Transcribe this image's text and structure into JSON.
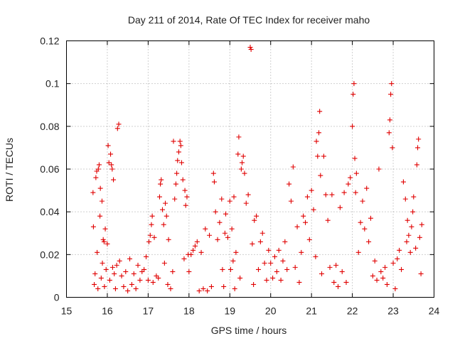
{
  "chart_data": {
    "type": "scatter",
    "title": "Day 211 of 2014, Rate Of TEC Index for receiver maho",
    "xlabel": "GPS time / hours",
    "ylabel": "ROTI / TECUs",
    "xlim": [
      15,
      24
    ],
    "ylim": [
      0,
      0.12
    ],
    "xticks": [
      "15",
      "16",
      "17",
      "18",
      "19",
      "20",
      "21",
      "22",
      "23",
      "24"
    ],
    "yticks": [
      "0",
      "0.02",
      "0.04",
      "0.06",
      "0.08",
      "0.1",
      "0.12"
    ],
    "grid": true,
    "marker": "plus",
    "color": "#e00000",
    "note": "approximate trace: representative points estimated from a ~2000-point noisy scatter",
    "series": [
      {
        "name": "ROTI",
        "points": [
          [
            15.65,
            0.049
          ],
          [
            15.66,
            0.033
          ],
          [
            15.68,
            0.006
          ],
          [
            15.7,
            0.011
          ],
          [
            15.72,
            0.056
          ],
          [
            15.74,
            0.059
          ],
          [
            15.75,
            0.021
          ],
          [
            15.77,
            0.004
          ],
          [
            15.78,
            0.06
          ],
          [
            15.8,
            0.062
          ],
          [
            15.82,
            0.038
          ],
          [
            15.83,
            0.051
          ],
          [
            15.85,
            0.009
          ],
          [
            15.87,
            0.045
          ],
          [
            15.88,
            0.016
          ],
          [
            15.9,
            0.027
          ],
          [
            15.92,
            0.026
          ],
          [
            15.93,
            0.005
          ],
          [
            15.95,
            0.032
          ],
          [
            15.97,
            0.013
          ],
          [
            16.0,
            0.025
          ],
          [
            16.02,
            0.071
          ],
          [
            16.04,
            0.063
          ],
          [
            16.06,
            0.008
          ],
          [
            16.08,
            0.067
          ],
          [
            16.1,
            0.062
          ],
          [
            16.12,
            0.06
          ],
          [
            16.13,
            0.014
          ],
          [
            16.15,
            0.055
          ],
          [
            16.17,
            0.011
          ],
          [
            16.2,
            0.004
          ],
          [
            16.23,
            0.015
          ],
          [
            16.25,
            0.079
          ],
          [
            16.28,
            0.081
          ],
          [
            16.3,
            0.017
          ],
          [
            16.35,
            0.01
          ],
          [
            16.4,
            0.005
          ],
          [
            16.45,
            0.012
          ],
          [
            16.5,
            0.003
          ],
          [
            16.55,
            0.018
          ],
          [
            16.6,
            0.006
          ],
          [
            16.65,
            0.011
          ],
          [
            16.7,
            0.004
          ],
          [
            16.75,
            0.015
          ],
          [
            16.8,
            0.008
          ],
          [
            16.85,
            0.012
          ],
          [
            16.9,
            0.013
          ],
          [
            16.95,
            0.019
          ],
          [
            17.0,
            0.008
          ],
          [
            17.02,
            0.026
          ],
          [
            17.05,
            0.029
          ],
          [
            17.08,
            0.034
          ],
          [
            17.1,
            0.038
          ],
          [
            17.12,
            0.007
          ],
          [
            17.15,
            0.028
          ],
          [
            17.2,
            0.01
          ],
          [
            17.25,
            0.009
          ],
          [
            17.28,
            0.047
          ],
          [
            17.3,
            0.053
          ],
          [
            17.32,
            0.055
          ],
          [
            17.35,
            0.041
          ],
          [
            17.38,
            0.034
          ],
          [
            17.4,
            0.016
          ],
          [
            17.42,
            0.044
          ],
          [
            17.45,
            0.038
          ],
          [
            17.48,
            0.006
          ],
          [
            17.5,
            0.027
          ],
          [
            17.55,
            0.004
          ],
          [
            17.6,
            0.012
          ],
          [
            17.62,
            0.073
          ],
          [
            17.65,
            0.046
          ],
          [
            17.68,
            0.053
          ],
          [
            17.7,
            0.058
          ],
          [
            17.72,
            0.064
          ],
          [
            17.75,
            0.068
          ],
          [
            17.78,
            0.073
          ],
          [
            17.8,
            0.071
          ],
          [
            17.82,
            0.063
          ],
          [
            17.85,
            0.055
          ],
          [
            17.88,
            0.018
          ],
          [
            17.9,
            0.05
          ],
          [
            17.92,
            0.043
          ],
          [
            17.95,
            0.047
          ],
          [
            17.98,
            0.02
          ],
          [
            18.0,
            0.012
          ],
          [
            18.05,
            0.02
          ],
          [
            18.1,
            0.022
          ],
          [
            18.15,
            0.024
          ],
          [
            18.2,
            0.026
          ],
          [
            18.25,
            0.003
          ],
          [
            18.3,
            0.021
          ],
          [
            18.35,
            0.004
          ],
          [
            18.4,
            0.032
          ],
          [
            18.45,
            0.003
          ],
          [
            18.5,
            0.029
          ],
          [
            18.55,
            0.005
          ],
          [
            18.6,
            0.058
          ],
          [
            18.62,
            0.054
          ],
          [
            18.65,
            0.04
          ],
          [
            18.7,
            0.027
          ],
          [
            18.75,
            0.035
          ],
          [
            18.8,
            0.046
          ],
          [
            18.82,
            0.013
          ],
          [
            18.85,
            0.005
          ],
          [
            18.88,
            0.03
          ],
          [
            18.9,
            0.039
          ],
          [
            18.95,
            0.028
          ],
          [
            19.0,
            0.045
          ],
          [
            19.02,
            0.013
          ],
          [
            19.05,
            0.032
          ],
          [
            19.08,
            0.017
          ],
          [
            19.1,
            0.047
          ],
          [
            19.12,
            0.004
          ],
          [
            19.15,
            0.021
          ],
          [
            19.2,
            0.067
          ],
          [
            19.22,
            0.075
          ],
          [
            19.25,
            0.009
          ],
          [
            19.28,
            0.06
          ],
          [
            19.3,
            0.063
          ],
          [
            19.33,
            0.066
          ],
          [
            19.36,
            0.058
          ],
          [
            19.4,
            0.044
          ],
          [
            19.45,
            0.048
          ],
          [
            19.5,
            0.117
          ],
          [
            19.52,
            0.116
          ],
          [
            19.55,
            0.025
          ],
          [
            19.58,
            0.006
          ],
          [
            19.6,
            0.036
          ],
          [
            19.65,
            0.038
          ],
          [
            19.7,
            0.013
          ],
          [
            19.75,
            0.026
          ],
          [
            19.8,
            0.03
          ],
          [
            19.85,
            0.016
          ],
          [
            19.9,
            0.008
          ],
          [
            19.95,
            0.022
          ],
          [
            20.0,
            0.016
          ],
          [
            20.05,
            0.009
          ],
          [
            20.1,
            0.019
          ],
          [
            20.15,
            0.012
          ],
          [
            20.2,
            0.022
          ],
          [
            20.25,
            0.008
          ],
          [
            20.3,
            0.017
          ],
          [
            20.35,
            0.026
          ],
          [
            20.4,
            0.013
          ],
          [
            20.45,
            0.053
          ],
          [
            20.5,
            0.045
          ],
          [
            20.55,
            0.061
          ],
          [
            20.6,
            0.014
          ],
          [
            20.65,
            0.033
          ],
          [
            20.7,
            0.007
          ],
          [
            20.75,
            0.021
          ],
          [
            20.8,
            0.038
          ],
          [
            20.85,
            0.035
          ],
          [
            20.9,
            0.047
          ],
          [
            20.95,
            0.027
          ],
          [
            21.0,
            0.05
          ],
          [
            21.05,
            0.041
          ],
          [
            21.1,
            0.019
          ],
          [
            21.12,
            0.073
          ],
          [
            21.15,
            0.066
          ],
          [
            21.18,
            0.077
          ],
          [
            21.2,
            0.087
          ],
          [
            21.22,
            0.057
          ],
          [
            21.25,
            0.011
          ],
          [
            21.3,
            0.066
          ],
          [
            21.35,
            0.048
          ],
          [
            21.4,
            0.036
          ],
          [
            21.45,
            0.014
          ],
          [
            21.5,
            0.048
          ],
          [
            21.55,
            0.007
          ],
          [
            21.6,
            0.015
          ],
          [
            21.65,
            0.005
          ],
          [
            21.7,
            0.042
          ],
          [
            21.75,
            0.012
          ],
          [
            21.8,
            0.049
          ],
          [
            21.85,
            0.007
          ],
          [
            21.9,
            0.053
          ],
          [
            21.95,
            0.056
          ],
          [
            22.0,
            0.08
          ],
          [
            22.02,
            0.095
          ],
          [
            22.04,
            0.1
          ],
          [
            22.06,
            0.065
          ],
          [
            22.08,
            0.049
          ],
          [
            22.1,
            0.058
          ],
          [
            22.15,
            0.021
          ],
          [
            22.2,
            0.035
          ],
          [
            22.25,
            0.045
          ],
          [
            22.3,
            0.032
          ],
          [
            22.35,
            0.051
          ],
          [
            22.4,
            0.026
          ],
          [
            22.45,
            0.037
          ],
          [
            22.5,
            0.01
          ],
          [
            22.55,
            0.017
          ],
          [
            22.6,
            0.008
          ],
          [
            22.65,
            0.06
          ],
          [
            22.7,
            0.012
          ],
          [
            22.75,
            0.009
          ],
          [
            22.8,
            0.014
          ],
          [
            22.85,
            0.006
          ],
          [
            22.9,
            0.077
          ],
          [
            22.92,
            0.083
          ],
          [
            22.94,
            0.095
          ],
          [
            22.96,
            0.1
          ],
          [
            22.98,
            0.07
          ],
          [
            23.0,
            0.016
          ],
          [
            23.05,
            0.004
          ],
          [
            23.1,
            0.018
          ],
          [
            23.15,
            0.022
          ],
          [
            23.2,
            0.013
          ],
          [
            23.25,
            0.054
          ],
          [
            23.3,
            0.046
          ],
          [
            23.33,
            0.026
          ],
          [
            23.35,
            0.036
          ],
          [
            23.38,
            0.029
          ],
          [
            23.42,
            0.021
          ],
          [
            23.45,
            0.033
          ],
          [
            23.48,
            0.04
          ],
          [
            23.5,
            0.047
          ],
          [
            23.55,
            0.023
          ],
          [
            23.58,
            0.062
          ],
          [
            23.6,
            0.07
          ],
          [
            23.62,
            0.074
          ],
          [
            23.65,
            0.028
          ],
          [
            23.68,
            0.011
          ],
          [
            23.7,
            0.034
          ]
        ]
      }
    ]
  }
}
